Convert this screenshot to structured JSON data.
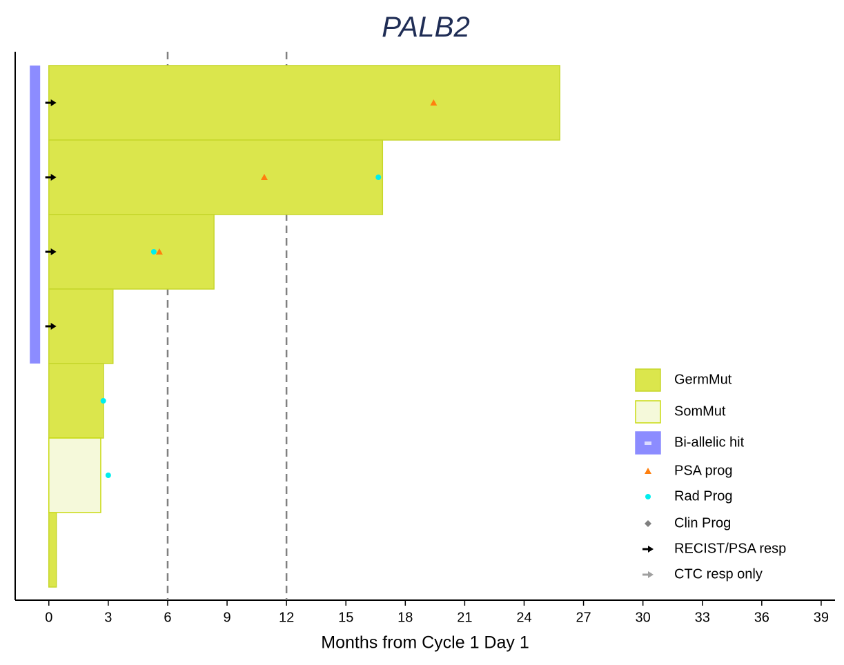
{
  "chart_data": {
    "type": "swimmer",
    "title": "PALB2",
    "x_label": "Months from Cycle 1 Day 1",
    "categories": [
      null,
      null,
      null,
      null,
      null,
      null,
      null
    ],
    "xlim": [
      -1.7,
      39.7
    ],
    "xticks": [
      0,
      3,
      6,
      9,
      12,
      15,
      18,
      21,
      24,
      27,
      30,
      33,
      36,
      39
    ],
    "reference_lines": [
      6,
      12
    ],
    "series": [
      {
        "name": "GermMut",
        "color": "#dbe64c",
        "stroke": "#c6d62a",
        "marker": "bar",
        "values": [
          25.8,
          16.85,
          8.34,
          3.24,
          2.76,
          null,
          0.38
        ]
      },
      {
        "name": "SomMut",
        "color": "#f5f9da",
        "stroke": "#c8da10",
        "marker": "bar",
        "values": [
          null,
          null,
          null,
          null,
          null,
          2.62,
          null
        ]
      },
      {
        "name": "Bi-allelic hit",
        "color": "#8c8cff",
        "marker": "strip",
        "values": [
          -0.7,
          -0.7,
          -0.7,
          -0.7,
          null,
          null,
          null
        ]
      },
      {
        "name": "PSA prog",
        "color": "#ff7f0e",
        "marker": "triangle",
        "values": [
          19.43,
          10.88,
          5.58,
          null,
          null,
          null,
          null
        ]
      },
      {
        "name": "Rad Prog",
        "color": "#00eeee",
        "marker": "circle",
        "values": [
          null,
          16.64,
          5.3,
          null,
          2.75,
          3.0,
          null
        ]
      },
      {
        "name": "Clin Prog",
        "color": "#7f7f7f",
        "marker": "diamond",
        "values": [
          null,
          null,
          null,
          null,
          null,
          null,
          null
        ]
      },
      {
        "name": "RECIST/PSA resp",
        "color": "#000000",
        "marker": "arrow",
        "values": [
          0.1,
          0.1,
          0.1,
          0.1,
          null,
          null,
          null
        ]
      },
      {
        "name": "CTC resp only",
        "color": "#a0a0a0",
        "marker": "arrow",
        "values": [
          null,
          null,
          null,
          null,
          null,
          null,
          null
        ]
      }
    ]
  }
}
